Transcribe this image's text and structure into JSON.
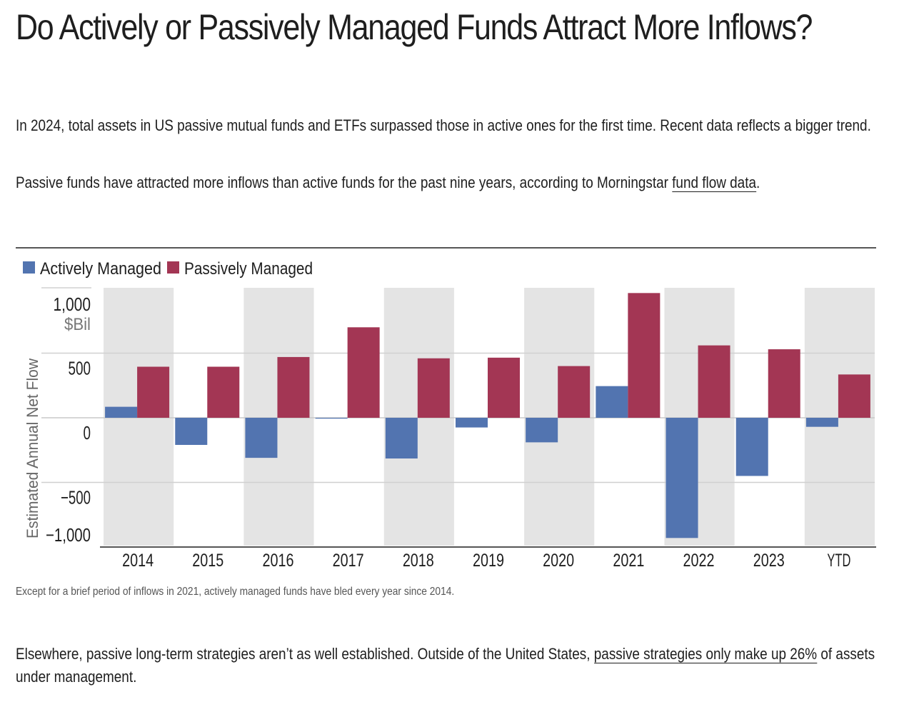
{
  "article": {
    "title": "Do Actively or Passively Managed Funds Attract More Inflows?",
    "p1": "In 2024, total assets in US passive mutual funds and ETFs surpassed those in active ones for the first time. Recent data reflects a bigger trend.",
    "p2_before": "Passive funds have attracted more inflows than active funds for the past nine years, according to Morningstar ",
    "p2_link": "fund flow data",
    "p2_after": ".",
    "caption": "Except for a brief period of inflows in 2021, actively managed funds have bled every year since 2014.",
    "p3_before": "Elsewhere, passive long-term strategies aren’t as well established. Outside of the United States, ",
    "p3_link": "passive strategies only make up 26%",
    "p3_after": " of assets under management."
  },
  "colors": {
    "active": "#5274b0",
    "passive": "#a33654",
    "band": "#e4e4e4",
    "grid": "#d0d0d0",
    "text": "#1e1e1e",
    "unit": "#777777"
  },
  "chart_data": {
    "type": "bar",
    "categories": [
      "2014",
      "2015",
      "2016",
      "2017",
      "2018",
      "2019",
      "2020",
      "2021",
      "2022",
      "2023",
      "YTD"
    ],
    "series": [
      {
        "name": "Actively Managed",
        "values": [
          85,
          -210,
          -310,
          -5,
          -315,
          -75,
          -190,
          245,
          -930,
          -450,
          -70
        ]
      },
      {
        "name": "Passively Managed",
        "values": [
          395,
          395,
          470,
          700,
          460,
          465,
          400,
          965,
          560,
          530,
          335
        ]
      }
    ],
    "yticks": [
      1000,
      500,
      0,
      -500,
      -1000
    ],
    "ytick_labels": [
      "1,000",
      "500",
      "0",
      "−500",
      "−1,000"
    ],
    "yunit": "$Bil",
    "ylabel": "Estimated Annual Net Flow",
    "ylim": [
      -1000,
      1000
    ],
    "legend_position": "top-left",
    "alternating_bands": true
  }
}
